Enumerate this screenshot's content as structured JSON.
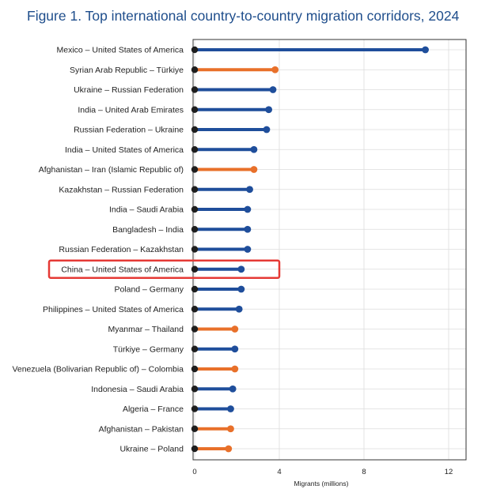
{
  "chart_data": {
    "type": "lollipop",
    "title": "Figure 1. Top international country-to-country migration corridors, 2024",
    "xlabel": "Migrants (millions)",
    "xlim": [
      0,
      13
    ],
    "xticks": [
      0,
      4,
      8,
      12
    ],
    "grid": "vertical",
    "colors": {
      "blue": "#1f4e9b",
      "orange": "#e8702a",
      "start": "#1e1e1e",
      "highlight": "#e53935"
    },
    "highlighted": "China – United States of America",
    "corridors": [
      {
        "label": "Mexico – United States of America",
        "value": 10.9,
        "color": "blue"
      },
      {
        "label": "Syrian Arab Republic – Türkiye",
        "value": 3.8,
        "color": "orange"
      },
      {
        "label": "Ukraine – Russian Federation",
        "value": 3.7,
        "color": "blue"
      },
      {
        "label": "India – United Arab Emirates",
        "value": 3.5,
        "color": "blue"
      },
      {
        "label": "Russian Federation – Ukraine",
        "value": 3.4,
        "color": "blue"
      },
      {
        "label": "India – United States of America",
        "value": 2.8,
        "color": "blue"
      },
      {
        "label": "Afghanistan – Iran (Islamic Republic of)",
        "value": 2.8,
        "color": "orange"
      },
      {
        "label": "Kazakhstan – Russian Federation",
        "value": 2.6,
        "color": "blue"
      },
      {
        "label": "India – Saudi Arabia",
        "value": 2.5,
        "color": "blue"
      },
      {
        "label": "Bangladesh – India",
        "value": 2.5,
        "color": "blue"
      },
      {
        "label": "Russian Federation – Kazakhstan",
        "value": 2.5,
        "color": "blue"
      },
      {
        "label": "China – United States of America",
        "value": 2.2,
        "color": "blue"
      },
      {
        "label": "Poland – Germany",
        "value": 2.2,
        "color": "blue"
      },
      {
        "label": "Philippines – United States of America",
        "value": 2.1,
        "color": "blue"
      },
      {
        "label": "Myanmar – Thailand",
        "value": 1.9,
        "color": "orange"
      },
      {
        "label": "Türkiye – Germany",
        "value": 1.9,
        "color": "blue"
      },
      {
        "label": "Venezuela (Bolivarian Republic of) – Colombia",
        "value": 1.9,
        "color": "orange"
      },
      {
        "label": "Indonesia – Saudi Arabia",
        "value": 1.8,
        "color": "blue"
      },
      {
        "label": "Algeria – France",
        "value": 1.7,
        "color": "blue"
      },
      {
        "label": "Afghanistan – Pakistan",
        "value": 1.7,
        "color": "orange"
      },
      {
        "label": "Ukraine – Poland",
        "value": 1.6,
        "color": "orange"
      }
    ]
  }
}
